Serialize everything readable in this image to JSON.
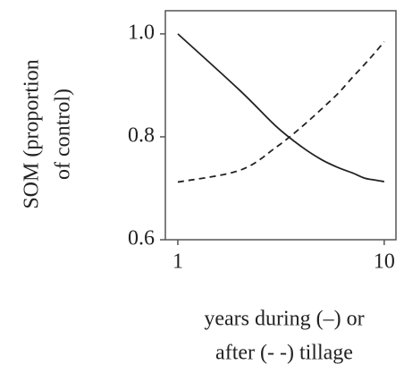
{
  "chart_data": {
    "type": "line",
    "ylabel": [
      "SOM (proportion",
      "of control)"
    ],
    "xlabel": [
      "years during (–) or",
      "after (- -) tillage"
    ],
    "x": [
      1,
      2,
      3,
      4,
      5,
      6,
      7,
      8,
      9,
      10
    ],
    "series": [
      {
        "color": "#222222",
        "style": "solid",
        "values": [
          1.0,
          0.89,
          0.82,
          0.78,
          0.755,
          0.74,
          0.73,
          0.72,
          0.716,
          0.713
        ]
      },
      {
        "color": "#222222",
        "style": "dashed",
        "values": [
          0.712,
          0.735,
          0.78,
          0.82,
          0.855,
          0.885,
          0.915,
          0.94,
          0.963,
          0.985
        ]
      }
    ],
    "xscale": "log",
    "xlim": [
      0.87,
      11.4
    ],
    "xticks": [
      1,
      10
    ],
    "ylim": [
      0.6,
      1.045
    ],
    "yticks": [
      {
        "value": 1.0,
        "label": "1.0"
      },
      {
        "value": 0.8,
        "label": "0.8"
      },
      {
        "value": 0.6,
        "label": "0.6"
      }
    ],
    "grid": false
  }
}
